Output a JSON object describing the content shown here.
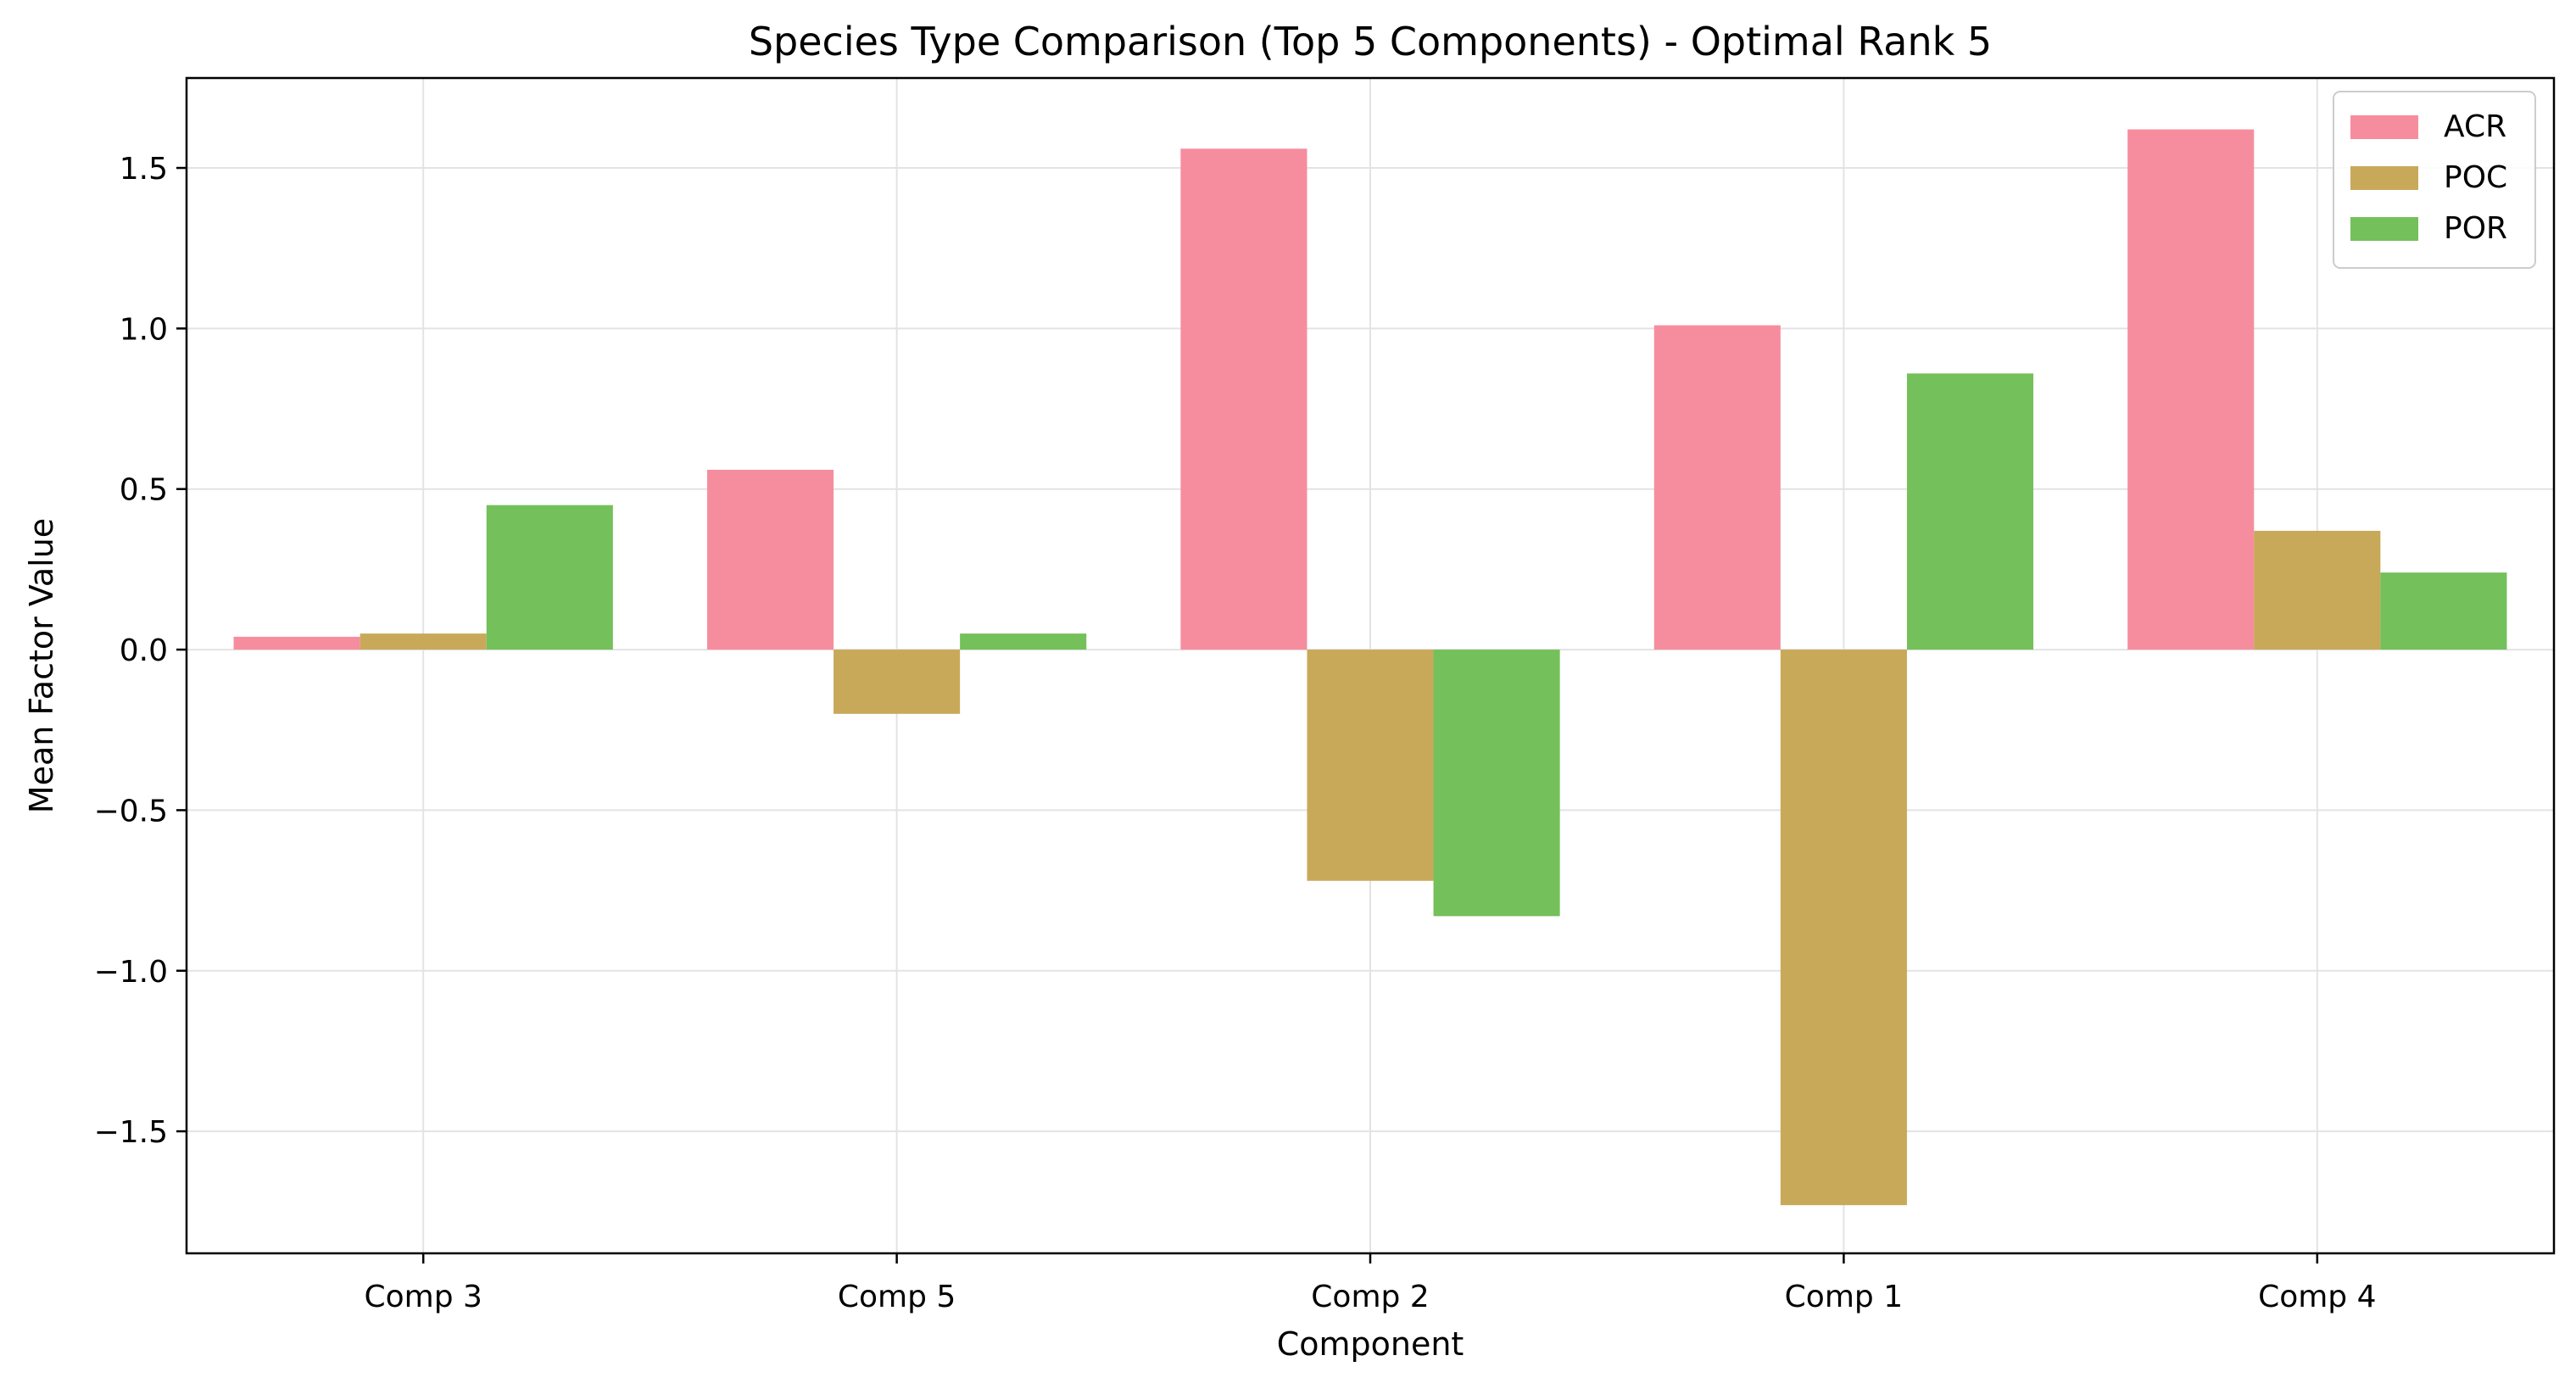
{
  "chart_data": {
    "type": "bar",
    "title": "Species Type Comparison (Top 5 Components) - Optimal Rank 5",
    "xlabel": "Component",
    "ylabel": "Mean Factor Value",
    "categories": [
      "Comp 3",
      "Comp 5",
      "Comp 2",
      "Comp 1",
      "Comp 4"
    ],
    "series": [
      {
        "name": "ACR",
        "color": "#f68d9e",
        "values": [
          0.04,
          0.56,
          1.56,
          1.01,
          1.62
        ]
      },
      {
        "name": "POC",
        "color": "#c8a959",
        "values": [
          0.05,
          -0.2,
          -0.72,
          -1.73,
          0.37
        ]
      },
      {
        "name": "POR",
        "color": "#74c05a",
        "values": [
          0.45,
          0.05,
          -0.83,
          0.86,
          0.24
        ]
      }
    ],
    "ylim": [
      -1.88,
      1.78
    ],
    "yticks": [
      1.5,
      1.0,
      0.5,
      0.0,
      -0.5,
      -1.0,
      -1.5
    ],
    "ytick_labels": [
      "1.5",
      "1.0",
      "0.5",
      "0.0",
      "−0.5",
      "−1.0",
      "−1.5"
    ],
    "grid": true,
    "legend_position": "top-right"
  }
}
